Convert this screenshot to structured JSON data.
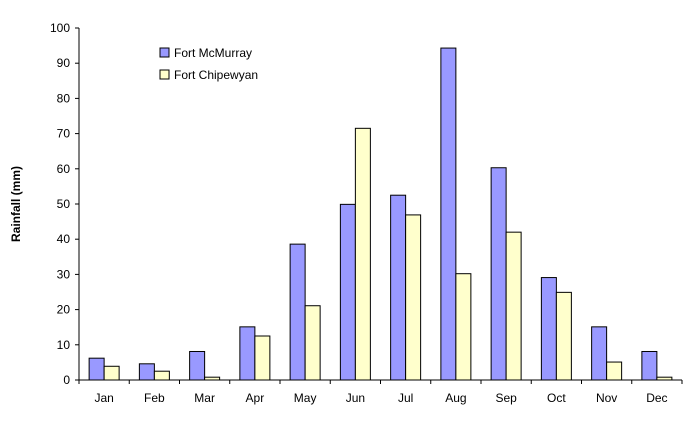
{
  "chart_data": {
    "type": "bar",
    "title": "",
    "xlabel": "",
    "ylabel": "Rainfall (mm)",
    "ylim": [
      0,
      100
    ],
    "yticks": [
      0,
      10,
      20,
      30,
      40,
      50,
      60,
      70,
      80,
      90,
      100
    ],
    "grid": false,
    "legend_position": "top-left",
    "categories": [
      "Jan",
      "Feb",
      "Mar",
      "Apr",
      "May",
      "Jun",
      "Jul",
      "Aug",
      "Sep",
      "Oct",
      "Nov",
      "Dec"
    ],
    "series": [
      {
        "name": "Fort McMurray",
        "color": "#9999ff",
        "values": [
          6.2,
          4.6,
          8.1,
          15.1,
          38.6,
          49.9,
          52.5,
          94.3,
          60.3,
          29.1,
          15.1,
          8.1
        ]
      },
      {
        "name": "Fort Chipewyan",
        "color": "#ffffcc",
        "values": [
          3.9,
          2.5,
          0.8,
          12.5,
          21.1,
          71.5,
          46.9,
          30.2,
          42.0,
          24.9,
          5.1,
          0.8
        ]
      }
    ]
  }
}
